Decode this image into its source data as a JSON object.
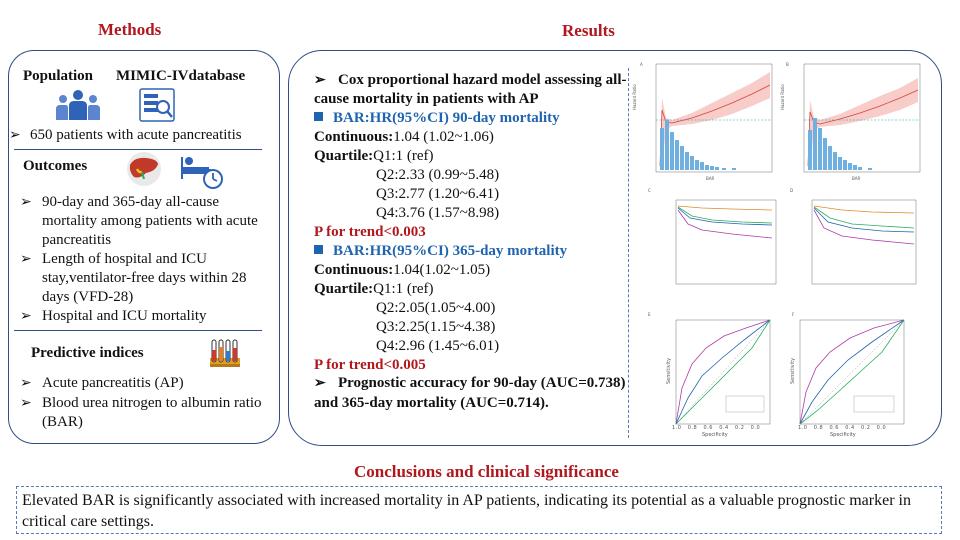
{
  "methods": {
    "title": "Methods",
    "population_label": "Population",
    "database_label": "MIMIC-IVdatabase",
    "population_bullet": "650 patients with acute pancreatitis",
    "outcomes_title": "Outcomes",
    "outcomes": [
      "90-day and 365-day all-cause mortality among patients with acute pancreatitis",
      "Length of hospital and ICU stay,ventilator-free days within 28 days (VFD-28)",
      "Hospital and ICU mortality"
    ],
    "predictive_title": "Predictive indices",
    "predictive": [
      "Acute pancreatitis (AP)",
      "Blood urea nitrogen to albumin ratio (BAR)"
    ]
  },
  "results": {
    "title": "Results",
    "cox_heading": "Cox proportional hazard model assessing all-cause mortality in patients with AP",
    "bar90_heading": "BAR:HR(95%CI) 90-day mortality",
    "bar90": {
      "continuous_label": "Continuous:",
      "continuous_value": "1.04 (1.02~1.06)",
      "quartile_label": "Quartile:",
      "q1": "Q1:1 (ref)",
      "q2": "Q2:2.33 (0.99~5.48)",
      "q3": "Q3:2.77 (1.20~6.41)",
      "q4": "Q4:3.76 (1.57~8.98)",
      "trend": "P for trend<0.003"
    },
    "bar365_heading": "BAR:HR(95%CI) 365-day mortality",
    "bar365": {
      "continuous_label": "Continuous:",
      "continuous_value": "1.04(1.02~1.05)",
      "quartile_label": "Quartile:",
      "q1": "Q1:1 (ref)",
      "q2": "Q2:2.05(1.05~4.00)",
      "q3": "Q3:2.25(1.15~4.38)",
      "q4": "Q4:2.96 (1.45~6.01)",
      "trend": "P for trend<0.005"
    },
    "prognostic_text": "Prognostic accuracy for 90-day (AUC=0.738) and 365-day mortality (AUC=0.714)."
  },
  "conclusions": {
    "title": "Conclusions and clinical significance",
    "text": "Elevated BAR is significantly associated with increased mortality in AP patients, indicating its potential as a valuable prognostic marker in critical care settings."
  },
  "figure_panels": {
    "a": "A",
    "b": "B",
    "c": "C",
    "d": "D",
    "e": "E",
    "f": "F",
    "hazard_ylabel": "Hazard Ratio",
    "bar_xlabel": "BAR",
    "sens_label": "Sensitivity",
    "spec_label": "Specificity",
    "roc_ticks": [
      "1.0",
      "0.8",
      "0.6",
      "0.4",
      "0.2",
      "0.0"
    ]
  },
  "colors": {
    "accent_red": "#b0181e",
    "accent_blue": "#1f64b0",
    "panel_border": "#2f4d86"
  }
}
